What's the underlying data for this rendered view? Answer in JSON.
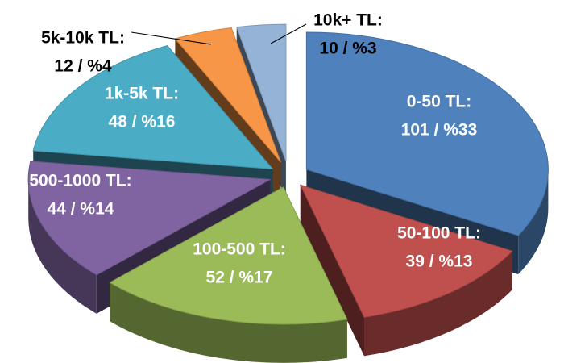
{
  "chart_data": {
    "type": "pie",
    "style": "3d-exploded",
    "title": "",
    "slices": [
      {
        "label": "0-50 TL:",
        "value_text": "101 / %33",
        "value": 101,
        "percent": 33,
        "color": "#4f81bd"
      },
      {
        "label": "50-100 TL:",
        "value_text": "39 / %13",
        "value": 39,
        "percent": 13,
        "color": "#c0504d"
      },
      {
        "label": "100-500 TL:",
        "value_text": "52 / %17",
        "value": 52,
        "percent": 17,
        "color": "#9bbb59"
      },
      {
        "label": "500-1000 TL:",
        "value_text": "44 / %14",
        "value": 44,
        "percent": 14,
        "color": "#8064a2"
      },
      {
        "label": "1k-5k TL:",
        "value_text": "48 / %16",
        "value": 48,
        "percent": 16,
        "color": "#4bacc6"
      },
      {
        "label": "5k-10k TL:",
        "value_text": "12 / %4",
        "value": 12,
        "percent": 4,
        "color": "#f79646"
      },
      {
        "label": "10k+ TL:",
        "value_text": "10 / %3",
        "value": 10,
        "percent": 3,
        "color": "#95b3d7"
      }
    ]
  }
}
